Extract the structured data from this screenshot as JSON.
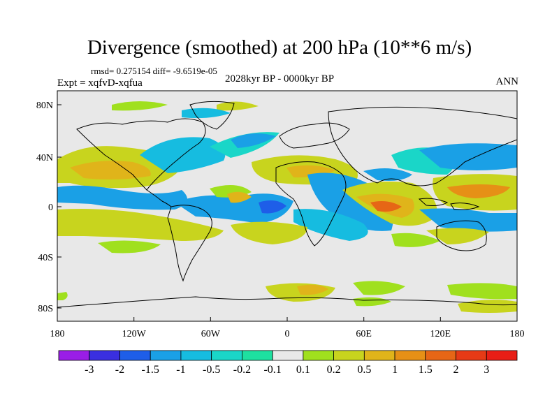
{
  "title": "Divergence (smoothed) at 200 hPa (10**6 m/s)",
  "stats_line": "rmsd= 0.275154 diff= -9.6519e-05",
  "experiment": "Expt = xqfvD-xqfua",
  "period": "2028kyr BP - 0000kyr BP",
  "season": "ANN",
  "lat_ticks": [
    "80N",
    "40N",
    "0",
    "40S",
    "80S"
  ],
  "lon_ticks": [
    "180",
    "120W",
    "60W",
    "0",
    "60E",
    "120E",
    "180"
  ],
  "colorbar": {
    "labels": [
      "-3",
      "-2",
      "-1.5",
      "-1",
      "-0.5",
      "-0.2",
      "-0.1",
      "0.1",
      "0.2",
      "0.5",
      "1",
      "1.5",
      "2",
      "3"
    ],
    "colors": [
      "#9a1ee6",
      "#3a2fe0",
      "#1e5ee8",
      "#1aa0e6",
      "#16bce0",
      "#1ad6c8",
      "#1ee0a0",
      "#e8e8e8",
      "#a0e01e",
      "#c8d41e",
      "#e0b41a",
      "#e69016",
      "#e66616",
      "#e63a16",
      "#e81e16"
    ]
  },
  "colors": {
    "ocean_background": "#e8e8e8",
    "coastline": "#000000"
  }
}
